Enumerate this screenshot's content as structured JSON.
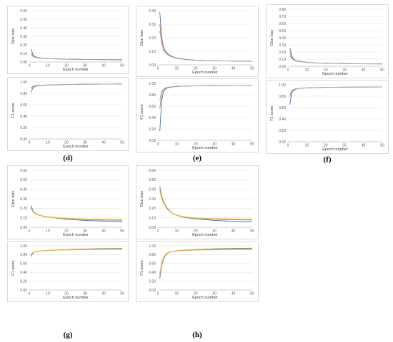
{
  "colors": {
    "blue": "#4472c4",
    "orange": "#ed7d31",
    "gray": "#a5a5a5",
    "yellow": "#ffc000",
    "grid": "#e4e4e4",
    "axis_text": "#595959"
  },
  "chart_data": [
    {
      "id": "d-dice",
      "type": "line",
      "ylabel": "Dice loss",
      "xlabel": "Epoch number",
      "xlim": [
        0,
        50
      ],
      "xticks": [
        0,
        10,
        20,
        30,
        40,
        50
      ],
      "ylim": [
        0,
        0.6
      ],
      "yticks": [
        "0.00",
        "0.10",
        "0.20",
        "0.30",
        "0.40",
        "0.50",
        "0.60"
      ],
      "grid": "horizontal",
      "x": [
        1,
        2,
        3,
        4,
        5,
        7,
        10,
        15,
        20,
        30,
        40,
        50
      ],
      "series": [
        {
          "color": "blue",
          "values": [
            0.15,
            0.08,
            0.065,
            0.055,
            0.05,
            0.045,
            0.04,
            0.037,
            0.034,
            0.03,
            0.028,
            0.027
          ]
        },
        {
          "color": "orange",
          "values": [
            0.1,
            0.07,
            0.06,
            0.052,
            0.048,
            0.043,
            0.039,
            0.036,
            0.033,
            0.03,
            0.028,
            0.027
          ]
        },
        {
          "color": "gray",
          "values": [
            0.08,
            0.065,
            0.055,
            0.05,
            0.046,
            0.042,
            0.038,
            0.035,
            0.032,
            0.029,
            0.027,
            0.026
          ]
        }
      ]
    },
    {
      "id": "d-f1",
      "type": "line",
      "ylabel": "F1 score",
      "xlabel": "Epoch number",
      "xlim": [
        0,
        50
      ],
      "xticks": [
        0,
        10,
        20,
        30,
        40,
        50
      ],
      "ylim": [
        0,
        1
      ],
      "yticks": [
        "0.00",
        "0.20",
        "0.40",
        "0.60",
        "0.80",
        "1.00"
      ],
      "grid": "horizontal",
      "x": [
        1,
        2,
        3,
        4,
        5,
        7,
        10,
        15,
        20,
        30,
        40,
        50
      ],
      "series": [
        {
          "color": "blue",
          "values": [
            0.82,
            0.9,
            0.92,
            0.93,
            0.935,
            0.94,
            0.945,
            0.95,
            0.955,
            0.96,
            0.962,
            0.965
          ]
        },
        {
          "color": "orange",
          "values": [
            0.88,
            0.92,
            0.93,
            0.935,
            0.94,
            0.943,
            0.947,
            0.952,
            0.956,
            0.96,
            0.962,
            0.965
          ]
        },
        {
          "color": "gray",
          "values": [
            0.9,
            0.925,
            0.932,
            0.937,
            0.941,
            0.944,
            0.948,
            0.952,
            0.956,
            0.96,
            0.962,
            0.964
          ]
        }
      ]
    },
    {
      "id": "e-dice",
      "type": "line",
      "ylabel": "Dice loss",
      "xlabel": "Epoch number",
      "xlim": [
        0,
        50
      ],
      "xticks": [
        0,
        10,
        20,
        30,
        40,
        50
      ],
      "ylim": [
        0,
        0.4
      ],
      "yticks": [
        "0.00",
        "0.10",
        "0.20",
        "0.30",
        "0.40"
      ],
      "grid": "horizontal",
      "x": [
        1,
        2,
        3,
        4,
        5,
        7,
        10,
        15,
        20,
        30,
        40,
        50
      ],
      "series": [
        {
          "color": "blue",
          "values": [
            0.39,
            0.2,
            0.13,
            0.1,
            0.085,
            0.065,
            0.05,
            0.04,
            0.035,
            0.03,
            0.028,
            0.027
          ]
        },
        {
          "color": "orange",
          "values": [
            0.3,
            0.18,
            0.12,
            0.095,
            0.08,
            0.062,
            0.048,
            0.039,
            0.034,
            0.03,
            0.028,
            0.027
          ]
        },
        {
          "color": "gray",
          "values": [
            0.25,
            0.16,
            0.11,
            0.09,
            0.075,
            0.06,
            0.047,
            0.038,
            0.034,
            0.03,
            0.028,
            0.027
          ]
        }
      ]
    },
    {
      "id": "e-f1",
      "type": "line",
      "ylabel": "F1 score",
      "xlabel": "Epoch number",
      "xlim": [
        0,
        50
      ],
      "xticks": [
        0,
        10,
        20,
        30,
        40,
        50
      ],
      "ylim": [
        0,
        1
      ],
      "yticks": [
        "0.00",
        "0.20",
        "0.40",
        "0.60",
        "0.80",
        "1.00"
      ],
      "grid": "horizontal",
      "x": [
        1,
        2,
        3,
        4,
        5,
        7,
        10,
        15,
        20,
        30,
        40,
        50
      ],
      "series": [
        {
          "color": "blue",
          "values": [
            0.16,
            0.7,
            0.86,
            0.9,
            0.92,
            0.935,
            0.945,
            0.952,
            0.956,
            0.96,
            0.962,
            0.965
          ]
        },
        {
          "color": "orange",
          "values": [
            0.55,
            0.82,
            0.89,
            0.915,
            0.925,
            0.938,
            0.946,
            0.953,
            0.957,
            0.96,
            0.962,
            0.965
          ]
        },
        {
          "color": "gray",
          "values": [
            0.7,
            0.86,
            0.9,
            0.92,
            0.93,
            0.94,
            0.947,
            0.953,
            0.957,
            0.96,
            0.962,
            0.964
          ]
        }
      ]
    },
    {
      "id": "f-dice",
      "type": "line",
      "ylabel": "Dice loss",
      "xlabel": "Epoch number",
      "xlim": [
        0,
        50
      ],
      "xticks": [
        0,
        10,
        20,
        30,
        40,
        50
      ],
      "ylim": [
        0,
        0.8
      ],
      "yticks": [
        "0.00",
        "0.10",
        "0.20",
        "0.30",
        "0.40",
        "0.50",
        "0.60",
        "0.70",
        "0.80"
      ],
      "grid": "horizontal",
      "x": [
        1,
        2,
        3,
        4,
        5,
        7,
        10,
        15,
        20,
        30,
        40,
        50
      ],
      "series": [
        {
          "color": "blue",
          "values": [
            0.26,
            0.14,
            0.1,
            0.085,
            0.075,
            0.065,
            0.055,
            0.047,
            0.042,
            0.037,
            0.034,
            0.032
          ]
        },
        {
          "color": "orange",
          "values": [
            0.2,
            0.12,
            0.095,
            0.08,
            0.072,
            0.062,
            0.054,
            0.047,
            0.043,
            0.038,
            0.036,
            0.035
          ]
        },
        {
          "color": "gray",
          "values": [
            0.15,
            0.11,
            0.09,
            0.078,
            0.07,
            0.061,
            0.053,
            0.046,
            0.042,
            0.037,
            0.035,
            0.034
          ]
        }
      ]
    },
    {
      "id": "f-f1",
      "type": "line",
      "ylabel": "F1 score",
      "xlabel": "Epoch number",
      "xlim": [
        0,
        50
      ],
      "xticks": [
        0,
        10,
        20,
        30,
        40,
        50
      ],
      "ylim": [
        0,
        1
      ],
      "yticks": [
        "0.00",
        "0.20",
        "0.40",
        "0.60",
        "0.80",
        "1.00"
      ],
      "grid": "horizontal",
      "x": [
        1,
        2,
        3,
        4,
        5,
        7,
        10,
        15,
        20,
        30,
        40,
        50
      ],
      "series": [
        {
          "color": "blue",
          "values": [
            0.65,
            0.86,
            0.9,
            0.92,
            0.93,
            0.94,
            0.945,
            0.95,
            0.955,
            0.958,
            0.96,
            0.962
          ]
        },
        {
          "color": "orange",
          "values": [
            0.78,
            0.89,
            0.915,
            0.925,
            0.932,
            0.94,
            0.946,
            0.951,
            0.955,
            0.958,
            0.96,
            0.962
          ]
        },
        {
          "color": "gray",
          "values": [
            0.82,
            0.9,
            0.92,
            0.928,
            0.934,
            0.941,
            0.946,
            0.951,
            0.955,
            0.958,
            0.96,
            0.962
          ]
        }
      ]
    },
    {
      "id": "g-dice",
      "type": "line",
      "ylabel": "Dice loss",
      "xlabel": "Epoch number",
      "xlim": [
        0,
        50
      ],
      "xticks": [
        0,
        10,
        20,
        30,
        40,
        50
      ],
      "ylim": [
        0,
        0.6
      ],
      "yticks": [
        "0.00",
        "0.10",
        "0.20",
        "0.30",
        "0.40",
        "0.50",
        "0.60"
      ],
      "grid": "horizontal",
      "x": [
        1,
        2,
        3,
        4,
        5,
        7,
        10,
        15,
        20,
        25,
        30,
        35,
        40,
        45,
        50
      ],
      "series": [
        {
          "color": "blue",
          "values": [
            0.23,
            0.17,
            0.15,
            0.14,
            0.13,
            0.12,
            0.11,
            0.095,
            0.085,
            0.078,
            0.072,
            0.068,
            0.065,
            0.062,
            0.06
          ]
        },
        {
          "color": "orange",
          "values": [
            0.2,
            0.16,
            0.145,
            0.135,
            0.128,
            0.118,
            0.108,
            0.097,
            0.09,
            0.085,
            0.082,
            0.08,
            0.078,
            0.077,
            0.076
          ]
        },
        {
          "color": "gray",
          "values": [
            0.21,
            0.165,
            0.148,
            0.137,
            0.13,
            0.12,
            0.11,
            0.098,
            0.09,
            0.085,
            0.08,
            0.077,
            0.075,
            0.074,
            0.073
          ]
        },
        {
          "color": "yellow",
          "values": [
            0.19,
            0.16,
            0.145,
            0.136,
            0.13,
            0.121,
            0.112,
            0.102,
            0.096,
            0.091,
            0.088,
            0.086,
            0.085,
            0.084,
            0.083
          ]
        }
      ]
    },
    {
      "id": "g-f1",
      "type": "line",
      "ylabel": "F1 score",
      "xlabel": "Epoch number",
      "xlim": [
        0,
        50
      ],
      "xticks": [
        0,
        10,
        20,
        30,
        40,
        50
      ],
      "ylim": [
        0,
        1
      ],
      "yticks": [
        "0.00",
        "0.20",
        "0.40",
        "0.60",
        "0.80",
        "1.00"
      ],
      "grid": "horizontal",
      "x": [
        1,
        2,
        3,
        4,
        5,
        7,
        10,
        15,
        20,
        25,
        30,
        35,
        40,
        45,
        50
      ],
      "series": [
        {
          "color": "blue",
          "values": [
            0.76,
            0.84,
            0.86,
            0.87,
            0.875,
            0.885,
            0.895,
            0.905,
            0.915,
            0.922,
            0.928,
            0.932,
            0.936,
            0.938,
            0.94
          ]
        },
        {
          "color": "orange",
          "values": [
            0.8,
            0.85,
            0.865,
            0.873,
            0.878,
            0.886,
            0.895,
            0.903,
            0.91,
            0.914,
            0.917,
            0.919,
            0.92,
            0.921,
            0.922
          ]
        },
        {
          "color": "gray",
          "values": [
            0.79,
            0.845,
            0.862,
            0.871,
            0.877,
            0.885,
            0.894,
            0.903,
            0.911,
            0.916,
            0.92,
            0.923,
            0.925,
            0.926,
            0.927
          ]
        },
        {
          "color": "yellow",
          "values": [
            0.81,
            0.85,
            0.865,
            0.873,
            0.878,
            0.886,
            0.893,
            0.9,
            0.905,
            0.909,
            0.912,
            0.914,
            0.915,
            0.916,
            0.917
          ]
        }
      ]
    },
    {
      "id": "h-dice",
      "type": "line",
      "ylabel": "Dice loss",
      "xlabel": "Epoch number",
      "xlim": [
        0,
        50
      ],
      "xticks": [
        0,
        10,
        20,
        30,
        40,
        50
      ],
      "ylim": [
        0,
        0.6
      ],
      "yticks": [
        "0.00",
        "0.10",
        "0.20",
        "0.30",
        "0.40",
        "0.50",
        "0.60"
      ],
      "grid": "horizontal",
      "x": [
        1,
        2,
        3,
        4,
        5,
        7,
        10,
        15,
        20,
        25,
        30,
        35,
        40,
        45,
        50
      ],
      "series": [
        {
          "color": "blue",
          "values": [
            0.43,
            0.33,
            0.27,
            0.23,
            0.2,
            0.16,
            0.125,
            0.1,
            0.09,
            0.08,
            0.072,
            0.067,
            0.063,
            0.06,
            0.058
          ]
        },
        {
          "color": "orange",
          "values": [
            0.4,
            0.31,
            0.26,
            0.22,
            0.19,
            0.155,
            0.125,
            0.105,
            0.095,
            0.09,
            0.086,
            0.084,
            0.082,
            0.081,
            0.08
          ]
        },
        {
          "color": "gray",
          "values": [
            0.41,
            0.32,
            0.265,
            0.225,
            0.195,
            0.158,
            0.127,
            0.104,
            0.093,
            0.087,
            0.083,
            0.08,
            0.078,
            0.077,
            0.076
          ]
        },
        {
          "color": "yellow",
          "values": [
            0.38,
            0.3,
            0.25,
            0.215,
            0.188,
            0.155,
            0.127,
            0.108,
            0.099,
            0.094,
            0.091,
            0.089,
            0.088,
            0.087,
            0.086
          ]
        }
      ]
    },
    {
      "id": "h-f1",
      "type": "line",
      "ylabel": "F1 score",
      "xlabel": "Epoch number",
      "xlim": [
        0,
        50
      ],
      "xticks": [
        0,
        10,
        20,
        30,
        40,
        50
      ],
      "ylim": [
        0,
        1
      ],
      "yticks": [
        "0.00",
        "0.20",
        "0.40",
        "0.60",
        "0.80",
        "1.00"
      ],
      "grid": "horizontal",
      "x": [
        1,
        2,
        3,
        4,
        5,
        7,
        10,
        15,
        20,
        25,
        30,
        35,
        40,
        45,
        50
      ],
      "series": [
        {
          "color": "blue",
          "values": [
            0.26,
            0.55,
            0.7,
            0.78,
            0.83,
            0.87,
            0.89,
            0.905,
            0.915,
            0.925,
            0.932,
            0.937,
            0.941,
            0.944,
            0.946
          ]
        },
        {
          "color": "orange",
          "values": [
            0.35,
            0.6,
            0.73,
            0.8,
            0.84,
            0.87,
            0.885,
            0.897,
            0.905,
            0.91,
            0.913,
            0.915,
            0.916,
            0.917,
            0.918
          ]
        },
        {
          "color": "gray",
          "values": [
            0.32,
            0.58,
            0.72,
            0.79,
            0.835,
            0.868,
            0.886,
            0.9,
            0.909,
            0.915,
            0.919,
            0.922,
            0.924,
            0.925,
            0.926
          ]
        },
        {
          "color": "yellow",
          "values": [
            0.38,
            0.62,
            0.74,
            0.805,
            0.842,
            0.87,
            0.884,
            0.895,
            0.902,
            0.906,
            0.909,
            0.911,
            0.912,
            0.913,
            0.914
          ]
        }
      ]
    }
  ],
  "captions": {
    "d": "(d)",
    "e": "(e)",
    "f": "(f)",
    "g": "(g)",
    "h": "(h)"
  }
}
